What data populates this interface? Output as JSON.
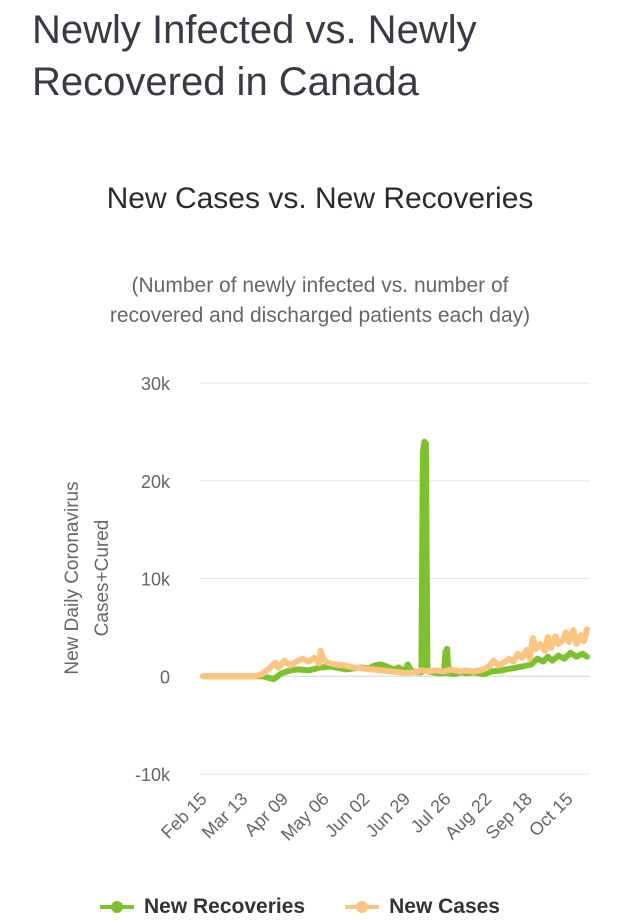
{
  "page": {
    "heading": "Newly Infected vs. Newly Recovered in Canada"
  },
  "colors": {
    "recoveries": "#7dc22e",
    "cases": "#fdc580",
    "grid": "#e6e6e6",
    "zero_line": "#cfd6e0"
  },
  "chart_data": {
    "type": "line",
    "title": "New Cases vs. New Recoveries",
    "subtitle": "(Number of newly infected vs. number of recovered and discharged patients each day)",
    "ylabel": "New Daily Coronavirus Cases+Cured",
    "xlabel": "",
    "ylim": [
      -10000,
      30000
    ],
    "y_ticks": [
      {
        "value": 30000,
        "label": "30k"
      },
      {
        "value": 20000,
        "label": "20k"
      },
      {
        "value": 10000,
        "label": "10k"
      },
      {
        "value": 0,
        "label": "0"
      },
      {
        "value": -10000,
        "label": "-10k"
      }
    ],
    "x_tick_labels": [
      "Feb 15",
      "Mar 13",
      "Apr 09",
      "May 06",
      "Jun 02",
      "Jun 29",
      "Jul 26",
      "Aug 22",
      "Sep 18",
      "Oct 15"
    ],
    "x_tick_index": [
      0,
      27,
      54,
      81,
      108,
      135,
      162,
      189,
      216,
      243
    ],
    "x_count": 256,
    "legend_position": "bottom",
    "series": [
      {
        "name": "New Recoveries",
        "key": "recoveries",
        "points": [
          [
            0,
            0
          ],
          [
            40,
            0
          ],
          [
            47,
            -300
          ],
          [
            52,
            300
          ],
          [
            58,
            600
          ],
          [
            63,
            700
          ],
          [
            70,
            600
          ],
          [
            78,
            900
          ],
          [
            85,
            1000
          ],
          [
            95,
            700
          ],
          [
            105,
            900
          ],
          [
            110,
            800
          ],
          [
            114,
            1100
          ],
          [
            118,
            1200
          ],
          [
            122,
            1000
          ],
          [
            127,
            700
          ],
          [
            130,
            900
          ],
          [
            134,
            500
          ],
          [
            136,
            1200
          ],
          [
            138,
            600
          ],
          [
            142,
            400
          ],
          [
            145,
            400
          ],
          [
            146,
            23000
          ],
          [
            147,
            24000
          ],
          [
            148,
            23800
          ],
          [
            149,
            500
          ],
          [
            152,
            400
          ],
          [
            156,
            300
          ],
          [
            160,
            300
          ],
          [
            161,
            2500
          ],
          [
            162,
            2800
          ],
          [
            163,
            300
          ],
          [
            167,
            200
          ],
          [
            171,
            400
          ],
          [
            175,
            300
          ],
          [
            180,
            400
          ],
          [
            186,
            200
          ],
          [
            192,
            500
          ],
          [
            198,
            600
          ],
          [
            205,
            800
          ],
          [
            212,
            1000
          ],
          [
            218,
            1200
          ],
          [
            222,
            1800
          ],
          [
            226,
            1500
          ],
          [
            229,
            2000
          ],
          [
            232,
            1600
          ],
          [
            236,
            2100
          ],
          [
            240,
            1800
          ],
          [
            244,
            2400
          ],
          [
            248,
            2000
          ],
          [
            252,
            2300
          ],
          [
            255,
            2000
          ]
        ]
      },
      {
        "name": "New Cases",
        "key": "cases",
        "points": [
          [
            0,
            0
          ],
          [
            35,
            0
          ],
          [
            40,
            300
          ],
          [
            44,
            800
          ],
          [
            48,
            1400
          ],
          [
            50,
            900
          ],
          [
            54,
            1600
          ],
          [
            58,
            1100
          ],
          [
            62,
            1500
          ],
          [
            66,
            1800
          ],
          [
            70,
            1500
          ],
          [
            74,
            1900
          ],
          [
            77,
            1300
          ],
          [
            78,
            2600
          ],
          [
            80,
            1700
          ],
          [
            83,
            1400
          ],
          [
            88,
            1200
          ],
          [
            94,
            1100
          ],
          [
            100,
            900
          ],
          [
            106,
            800
          ],
          [
            112,
            700
          ],
          [
            118,
            600
          ],
          [
            124,
            500
          ],
          [
            130,
            400
          ],
          [
            135,
            300
          ],
          [
            140,
            400
          ],
          [
            145,
            600
          ],
          [
            150,
            500
          ],
          [
            155,
            600
          ],
          [
            160,
            500
          ],
          [
            165,
            700
          ],
          [
            170,
            500
          ],
          [
            175,
            600
          ],
          [
            180,
            500
          ],
          [
            186,
            700
          ],
          [
            190,
            1000
          ],
          [
            193,
            1600
          ],
          [
            196,
            1100
          ],
          [
            200,
            1400
          ],
          [
            203,
            1800
          ],
          [
            206,
            1500
          ],
          [
            209,
            2300
          ],
          [
            212,
            1900
          ],
          [
            215,
            2700
          ],
          [
            217,
            1800
          ],
          [
            219,
            3900
          ],
          [
            221,
            2800
          ],
          [
            224,
            3300
          ],
          [
            227,
            2600
          ],
          [
            229,
            4000
          ],
          [
            231,
            2900
          ],
          [
            234,
            4100
          ],
          [
            236,
            3300
          ],
          [
            239,
            3700
          ],
          [
            241,
            4500
          ],
          [
            243,
            3500
          ],
          [
            246,
            4700
          ],
          [
            248,
            3300
          ],
          [
            251,
            4200
          ],
          [
            253,
            3600
          ],
          [
            255,
            4800
          ]
        ]
      }
    ]
  }
}
